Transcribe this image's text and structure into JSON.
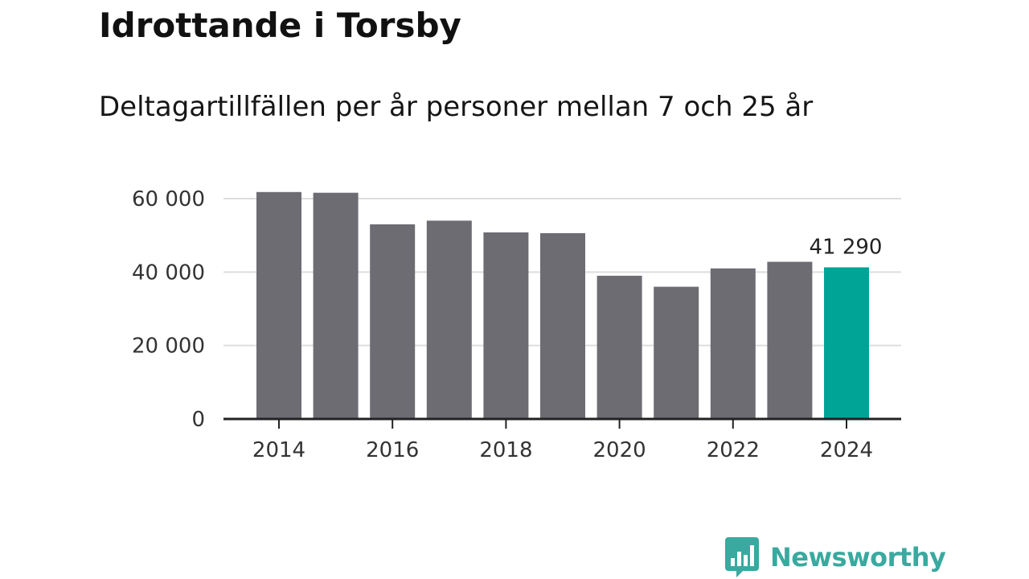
{
  "title": "Idrottande i Torsby",
  "subtitle": "Deltagartillfällen per år personer mellan 7 och 25 år",
  "brand": {
    "name": "Newsworthy",
    "icon": "bar-chart-bubble-icon",
    "color": "#3aa99f"
  },
  "colors": {
    "bar": "#6d6c73",
    "highlight": "#00a497",
    "grid": "#dddddd",
    "axis": "#222222"
  },
  "chart_data": {
    "type": "bar",
    "title": "Idrottande i Torsby",
    "subtitle": "Deltagartillfällen per år personer mellan 7 och 25 år",
    "xlabel": "",
    "ylabel": "",
    "categories": [
      "2014",
      "2015",
      "2016",
      "2017",
      "2018",
      "2019",
      "2020",
      "2021",
      "2022",
      "2023",
      "2024"
    ],
    "values": [
      61800,
      61600,
      53000,
      54000,
      50800,
      50600,
      39000,
      36000,
      41000,
      42800,
      41290
    ],
    "highlight_index": 10,
    "highlight_label": "41 290",
    "ylim": [
      0,
      60000
    ],
    "y_ticks": [
      0,
      20000,
      40000,
      60000
    ],
    "y_tick_labels": [
      "0",
      "20 000",
      "40 000",
      "60 000"
    ],
    "x_tick_labels": [
      "2014",
      "2016",
      "2018",
      "2020",
      "2022",
      "2024"
    ],
    "grid": true,
    "legend": "none"
  }
}
